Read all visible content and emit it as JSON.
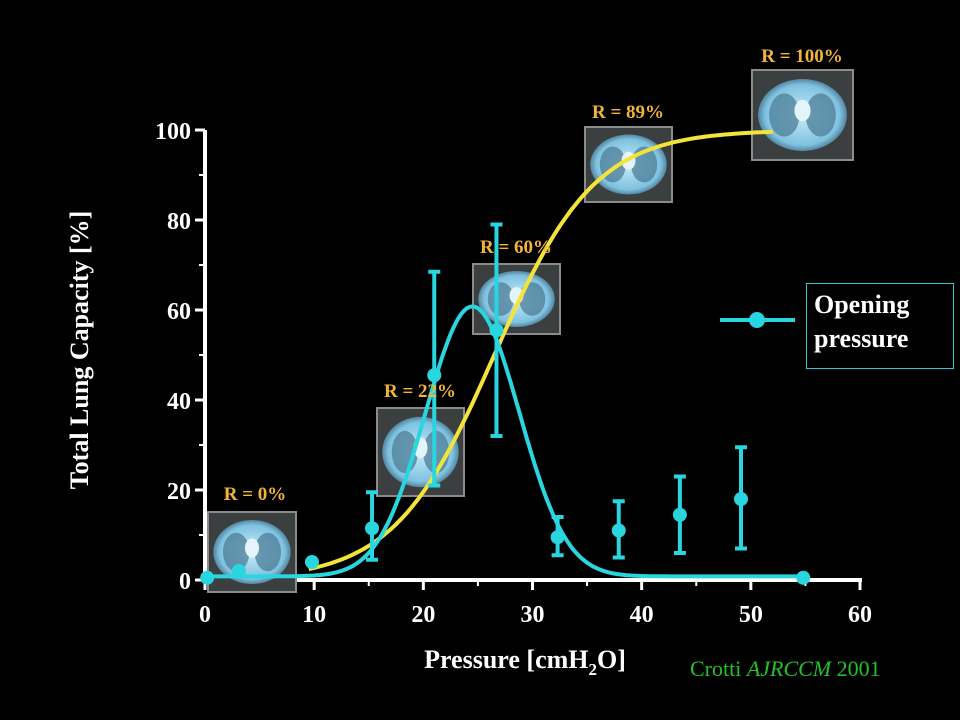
{
  "chart_data": {
    "type": "line",
    "title": "",
    "xlabel": "Pressure [cmH",
    "xlabel_sub": "2",
    "xlabel_end": "O]",
    "ylabel": "Total Lung Capacity [%]",
    "xlim": [
      0,
      60
    ],
    "ylim": [
      0,
      100
    ],
    "xticks": [
      "0",
      "10",
      "20",
      "30",
      "40",
      "50",
      "60"
    ],
    "yticks": [
      "0",
      "20",
      "40",
      "60",
      "80",
      "100"
    ],
    "grid": false,
    "legend": {
      "placement": "right",
      "label": "Opening pressure"
    },
    "series": [
      {
        "name": "Opening pressure",
        "color": "#29d6e0",
        "x": [
          0.2,
          3.1,
          9.8,
          15.3,
          21.0,
          26.7,
          32.3,
          37.9,
          43.5,
          49.1,
          54.8
        ],
        "y": [
          0.5,
          2.0,
          4.0,
          11.5,
          45.5,
          55.5,
          9.5,
          11.0,
          14.5,
          18.0,
          0.5
        ],
        "err_low": [
          null,
          null,
          null,
          4.5,
          21.0,
          32.0,
          5.5,
          5.0,
          6.0,
          7.0,
          null
        ],
        "err_high": [
          null,
          null,
          null,
          19.5,
          68.5,
          79.0,
          14.0,
          17.5,
          23.0,
          29.5,
          null
        ]
      }
    ],
    "recruitment_curve": {
      "color": "#f4e43a"
    },
    "annotations": [
      {
        "label": "R = 0%",
        "x": 7.5
      },
      {
        "label": "R = 22%",
        "x": 21.0
      },
      {
        "label": "R = 60%",
        "x": 28.0
      },
      {
        "label": "R = 89%",
        "x": 40.0
      },
      {
        "label": "R = 100%",
        "x": 53.0
      }
    ]
  },
  "legend_lines": [
    "Opening",
    "pressure"
  ],
  "citation": {
    "author": "Crotti ",
    "journal": "AJRCCM",
    "year": " 2001"
  }
}
